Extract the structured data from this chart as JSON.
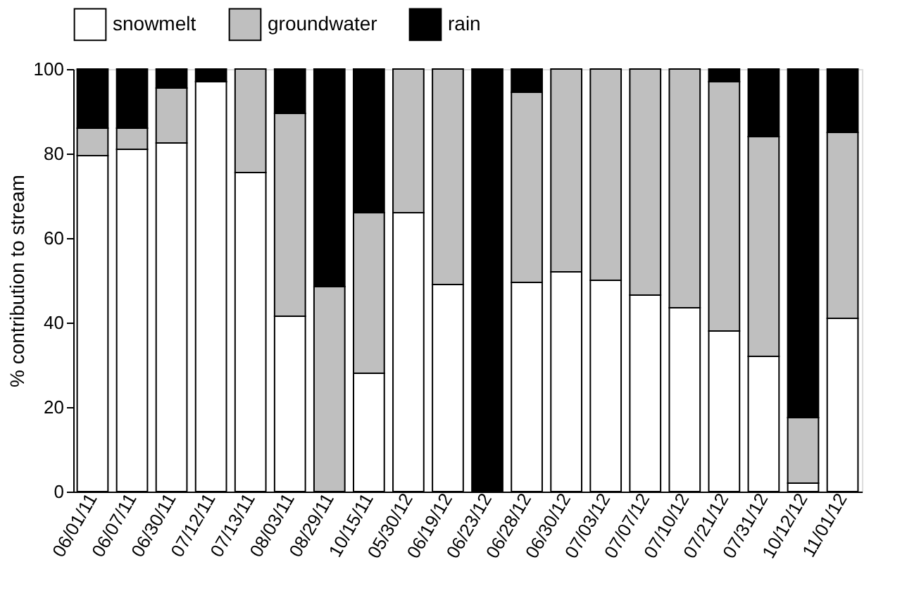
{
  "chart_data": {
    "type": "bar",
    "stacked": true,
    "ylabel": "% contribution to stream",
    "categories": [
      "06/01/11",
      "06/07/11",
      "06/30/11",
      "07/12/11",
      "07/13/11",
      "08/03/11",
      "08/29/11",
      "10/15/11",
      "05/30/12",
      "06/19/12",
      "06/23/12",
      "06/28/12",
      "06/30/12",
      "07/03/12",
      "07/07/12",
      "07/10/12",
      "07/21/12",
      "07/31/12",
      "10/12/12",
      "11/01/12"
    ],
    "series": [
      {
        "name": "snowmelt",
        "color": "#ffffff",
        "values": [
          79.5,
          81,
          82.5,
          97,
          75.5,
          41.5,
          0,
          28,
          66,
          49,
          0,
          49.5,
          52,
          50,
          46.5,
          43.5,
          38,
          32,
          2,
          41
        ]
      },
      {
        "name": "groundwater",
        "color": "#bfbfbf",
        "values": [
          6.5,
          5,
          13,
          0,
          24.5,
          48,
          48.5,
          38,
          34,
          51,
          0,
          45,
          48,
          50,
          53.5,
          56.5,
          59,
          52,
          15.5,
          44
        ]
      },
      {
        "name": "rain",
        "color": "#000000",
        "values": [
          14,
          14,
          4.5,
          3,
          0,
          10.5,
          51.5,
          34,
          0,
          0,
          100,
          5.5,
          0,
          0,
          0,
          0,
          3,
          16,
          82.5,
          15
        ]
      }
    ],
    "ylim": [
      0,
      100
    ],
    "yticks": [
      0,
      20,
      40,
      60,
      80,
      100
    ],
    "grid": false,
    "legend": "top"
  }
}
